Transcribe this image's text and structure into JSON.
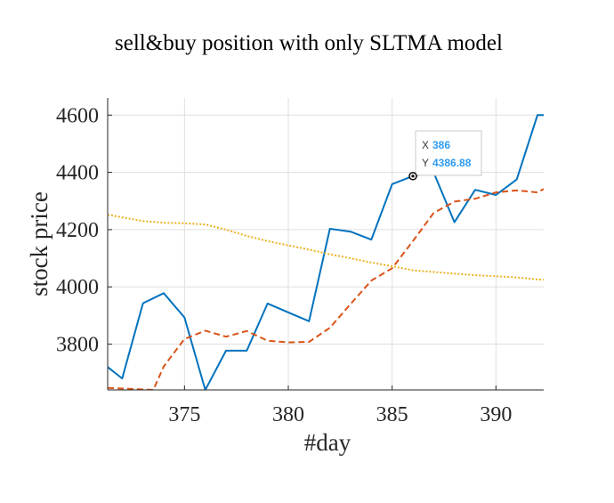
{
  "chart_data": {
    "type": "line",
    "title": "sell&buy position with only SLTMA model",
    "xlabel": "#day",
    "ylabel": "stock price",
    "xlim": [
      371.3,
      392.3
    ],
    "ylim": [
      3640,
      4660
    ],
    "x_ticks": [
      375,
      380,
      385,
      390
    ],
    "x_tick_labels": [
      "375",
      "380",
      "385",
      "390"
    ],
    "y_ticks": [
      3800,
      4000,
      4200,
      4400,
      4600
    ],
    "y_tick_labels": [
      "3800",
      "4000",
      "4200",
      "4400",
      "4600"
    ],
    "grid": true,
    "series": [
      {
        "style": "solid",
        "color": "#0072BD",
        "x": [
          371.3,
          372,
          373,
          374,
          375,
          376,
          377,
          378,
          379,
          380,
          381,
          382,
          383,
          384,
          385,
          386,
          387,
          388,
          389,
          390,
          391,
          392,
          392.3
        ],
        "y": [
          3720,
          3680,
          3943,
          3978,
          3893,
          3640,
          3777,
          3777,
          3942,
          3911,
          3880,
          4203,
          4193,
          4165,
          4359,
          4387,
          4400,
          4226,
          4339,
          4321,
          4375,
          4600,
          4600
        ]
      },
      {
        "style": "dashed",
        "color": "#D95319",
        "x": [
          371.3,
          373.5,
          374,
          375,
          376,
          377,
          378,
          379,
          380,
          381,
          382,
          383,
          384,
          385,
          386,
          387,
          388,
          389,
          390,
          391,
          392,
          392.3
        ],
        "y": [
          3647,
          3640,
          3722,
          3818,
          3847,
          3826,
          3846,
          3812,
          3806,
          3808,
          3857,
          3940,
          4022,
          4065,
          4160,
          4258,
          4298,
          4308,
          4330,
          4337,
          4330,
          4342
        ]
      },
      {
        "style": "dotted",
        "color": "#EDB120",
        "x": [
          371.3,
          373,
          374,
          375,
          376,
          377,
          378,
          379,
          380,
          381,
          382,
          383,
          384,
          385,
          386,
          387,
          388,
          389,
          390,
          391,
          392,
          392.3
        ],
        "y": [
          4252,
          4230,
          4224,
          4222,
          4218,
          4200,
          4178,
          4160,
          4145,
          4130,
          4114,
          4100,
          4085,
          4072,
          4058,
          4052,
          4046,
          4041,
          4037,
          4033,
          4026,
          4025
        ]
      }
    ],
    "datatip": {
      "x_label": "X",
      "x_value": "386",
      "y_label": "Y",
      "y_value": "4386.88",
      "x": 386,
      "y": 4386.88
    }
  }
}
